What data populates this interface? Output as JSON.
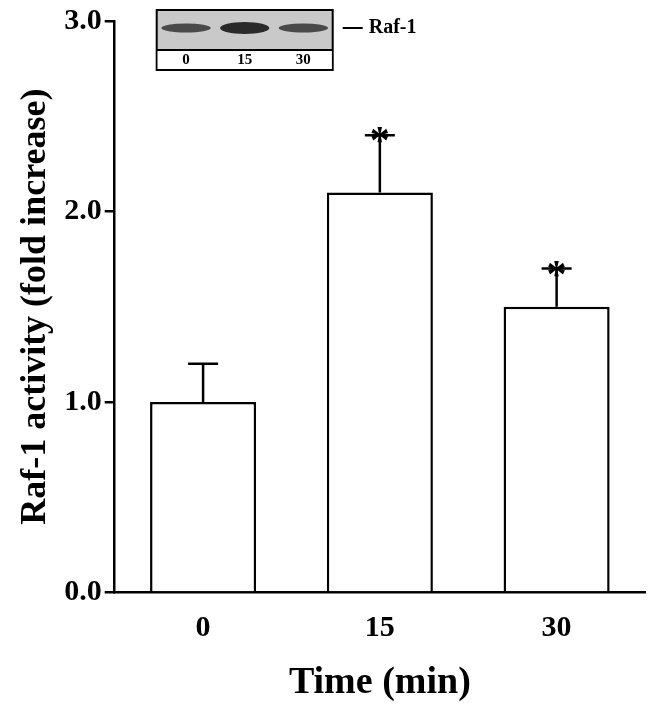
{
  "chart_data": {
    "type": "bar",
    "categories": [
      "0",
      "15",
      "30"
    ],
    "values": [
      1.0,
      2.1,
      1.5
    ],
    "errors": [
      0.2,
      0.3,
      0.2
    ],
    "color": "#ffffff",
    "x_label": "Time (min)",
    "y_label": "Raf-1 activity (fold increase)",
    "ylim": [
      0,
      3
    ],
    "yticks": [
      {
        "value": 0,
        "label": "0.0"
      },
      {
        "value": 1,
        "label": "1.0"
      },
      {
        "value": 2,
        "label": "2.0"
      },
      {
        "value": 3,
        "label": "3.0"
      }
    ],
    "grid": false,
    "annotations": {
      "bar_marks": [
        null,
        "*",
        "*"
      ],
      "inset_label": "Raf-1",
      "inset_lanes": [
        "0",
        "15",
        "30"
      ]
    }
  }
}
